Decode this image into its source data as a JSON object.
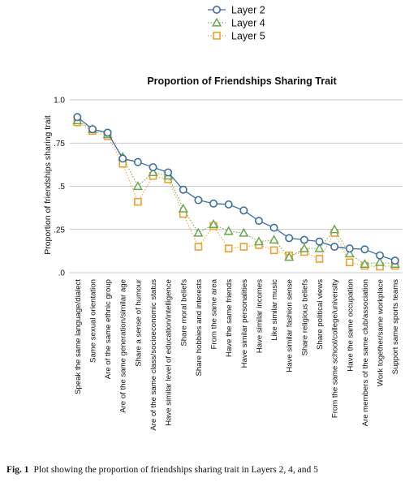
{
  "chart_data": {
    "type": "line",
    "title": "Proportion of Friendships Sharing Trait",
    "xlabel": "",
    "ylabel": "Proportion of friendships sharing trait",
    "ylim": [
      0,
      1
    ],
    "yticks": [
      {
        "value": 0,
        "label": ".0"
      },
      {
        "value": 0.25,
        "label": ".25"
      },
      {
        "value": 0.5,
        "label": ".5"
      },
      {
        "value": 0.75,
        "label": ".75"
      },
      {
        "value": 1,
        "label": "1.0"
      }
    ],
    "grid": true,
    "legend_position": "top-center",
    "categories": [
      "Speak the same language/dialect",
      "Same sexual orientation",
      "Are of the same ethnic group",
      "Are of the same generation/similar age",
      "Share a sense of humour",
      "Are of the same class/socioeconomic status",
      "Have similar level of education/intelligence",
      "Share moral beliefs",
      "Share hobbies and interests",
      "From the same area",
      "Have the same friends",
      "Have similar personalities",
      "Have similar incomes",
      "Like similar music",
      "Have similar fashion sense",
      "Share religious beliefs",
      "Share political views",
      "From the same school/college/university",
      "Have the same occupation",
      "Are members of the same club/association",
      "Work together/same workplace",
      "Support same sports teams"
    ],
    "series": [
      {
        "name": "Layer 2",
        "marker": "circle",
        "color": "#3d6e9e",
        "line": "solid",
        "values": [
          0.9,
          0.83,
          0.81,
          0.66,
          0.64,
          0.61,
          0.58,
          0.48,
          0.42,
          0.4,
          0.395,
          0.36,
          0.3,
          0.26,
          0.2,
          0.19,
          0.18,
          0.15,
          0.14,
          0.135,
          0.1,
          0.07
        ]
      },
      {
        "name": "Layer 4",
        "marker": "triangle",
        "color": "#6aa84f",
        "line": "dotted",
        "values": [
          0.88,
          0.83,
          0.8,
          0.67,
          0.5,
          0.58,
          0.56,
          0.37,
          0.23,
          0.28,
          0.24,
          0.23,
          0.18,
          0.19,
          0.09,
          0.14,
          0.14,
          0.25,
          0.11,
          0.05,
          0.06,
          0.05
        ]
      },
      {
        "name": "Layer 5",
        "marker": "square",
        "color": "#f0a030",
        "line": "dotted",
        "values": [
          0.87,
          0.82,
          0.79,
          0.63,
          0.41,
          0.56,
          0.54,
          0.34,
          0.15,
          0.27,
          0.14,
          0.15,
          0.16,
          0.13,
          0.1,
          0.12,
          0.08,
          0.23,
          0.06,
          0.04,
          0.035,
          0.04
        ]
      }
    ]
  },
  "caption": {
    "label": "Fig. 1",
    "text": "Plot showing the proportion of friendships sharing trait in Layers 2, 4, and 5"
  }
}
